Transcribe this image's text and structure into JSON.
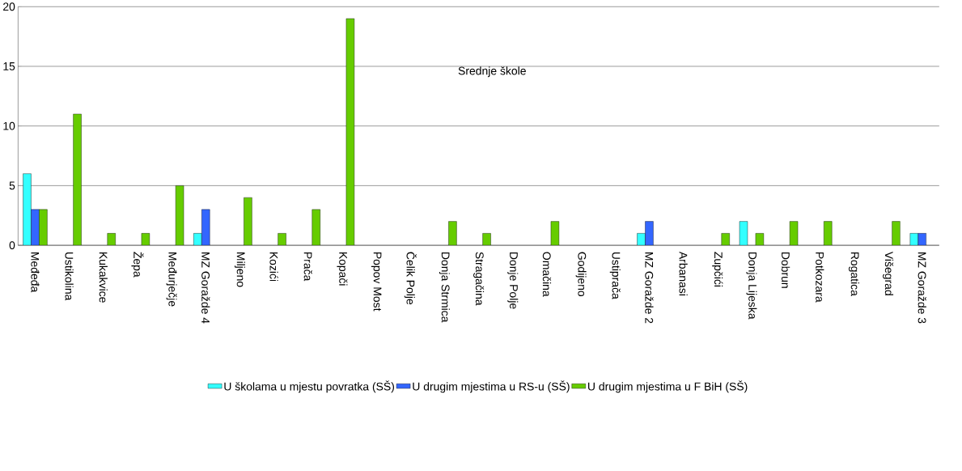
{
  "chart_data": {
    "type": "bar",
    "title": "Srednje škole",
    "categories": [
      "Međeđa",
      "Ustikolina",
      "Kukakvice",
      "Žepa",
      "Međurječje",
      "MZ Goražde 4",
      "Miljeno",
      "Kozići",
      "Prača",
      "Kopači",
      "Popov Most",
      "Čelik Polje",
      "Donja Strmica",
      "Stragačina",
      "Donje Polje",
      "Omačina",
      "Godijeno",
      "Ustiprača",
      "MZ Goražde 2",
      "Arbanasi",
      "Zupčići",
      "Donja Lijeska",
      "Dobrun",
      "Potkozara",
      "Rogatica",
      "Višegrad",
      "MZ Goražde 3"
    ],
    "series": [
      {
        "name": "U školama u mjestu povratka (SŠ)",
        "color": "#33ffff",
        "values": [
          6,
          null,
          null,
          null,
          null,
          1,
          null,
          null,
          null,
          null,
          null,
          null,
          null,
          null,
          null,
          null,
          null,
          null,
          1,
          null,
          null,
          2,
          null,
          null,
          null,
          null,
          1
        ]
      },
      {
        "name": "U drugim mjestima u RS-u (SŠ)",
        "color": "#3366ff",
        "values": [
          3,
          null,
          null,
          null,
          null,
          3,
          null,
          null,
          null,
          null,
          null,
          null,
          null,
          null,
          null,
          null,
          null,
          null,
          2,
          null,
          null,
          null,
          null,
          null,
          null,
          null,
          1
        ]
      },
      {
        "name": "U drugim mjestima u F BiH (SŠ)",
        "color": "#66cc00",
        "values": [
          3,
          11,
          1,
          1,
          5,
          null,
          4,
          1,
          3,
          19,
          null,
          null,
          2,
          1,
          null,
          2,
          null,
          null,
          null,
          null,
          1,
          1,
          2,
          2,
          null,
          2,
          null
        ]
      }
    ],
    "ylim": [
      0,
      20
    ],
    "yticks": [
      0,
      5,
      10,
      15,
      20
    ],
    "grid": "y",
    "legend": "bottom"
  }
}
